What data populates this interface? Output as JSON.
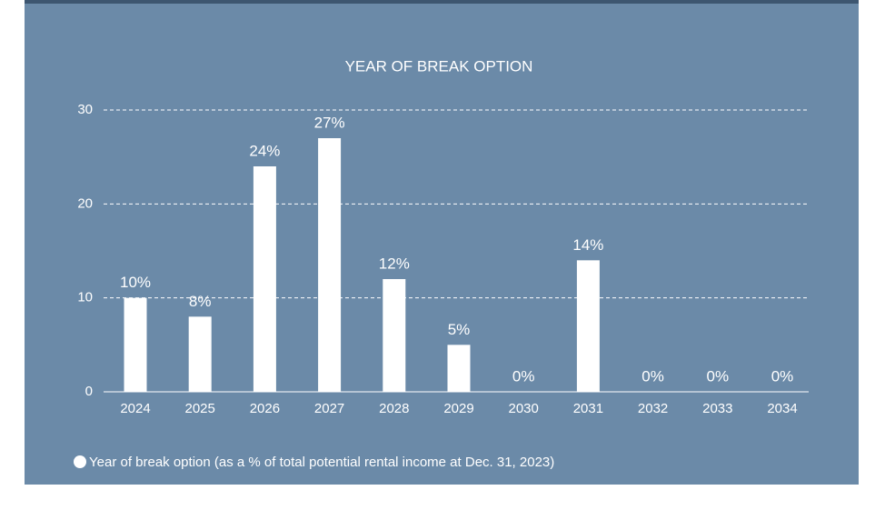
{
  "chart_data": {
    "type": "bar",
    "title": "YEAR OF BREAK OPTION",
    "categories": [
      "2024",
      "2025",
      "2026",
      "2027",
      "2028",
      "2029",
      "2030",
      "2031",
      "2032",
      "2033",
      "2034"
    ],
    "values": [
      10,
      8,
      24,
      27,
      12,
      5,
      0,
      14,
      0,
      0,
      0
    ],
    "value_labels": [
      "10%",
      "8%",
      "24%",
      "27%",
      "12%",
      "5%",
      "0%",
      "14%",
      "0%",
      "0%",
      "0%"
    ],
    "color": "#ffffff",
    "legend": "Year of break option (as a % of total potential rental income at Dec. 31, 2023)",
    "ylim": [
      0,
      30
    ],
    "yticks": [
      0,
      10,
      20,
      30
    ],
    "grid": true
  }
}
